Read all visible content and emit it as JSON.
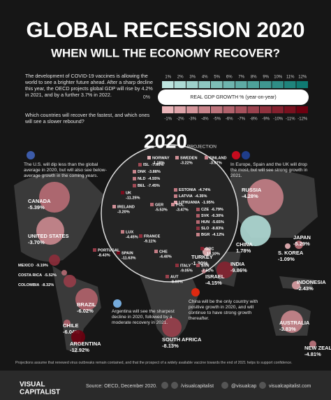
{
  "header": {
    "title": "GLOBAL RECESSION 2020",
    "subtitle": "WHEN WILL THE ECONOMY RECOVER?"
  },
  "intro": {
    "text": "The development of COVID-19 vaccines is allowing the world to see a brighter future ahead. After a sharp decline this year, the OECD projects global GDP will rise by 4.2% in 2021, and by a further 3.7% in 2022.",
    "question": "Which countries will recover the fastest, and which ones will see a slower rebound?"
  },
  "legend": {
    "title": "REAL GDP GROWTH % (year-on-year)",
    "zero": "0%",
    "positive": [
      {
        "value": 1,
        "label": "1%"
      },
      {
        "value": 2,
        "label": "2%"
      },
      {
        "value": 3,
        "label": "3%"
      },
      {
        "value": 4,
        "label": "4%"
      },
      {
        "value": 5,
        "label": "5%"
      },
      {
        "value": 6,
        "label": "6%"
      },
      {
        "value": 7,
        "label": "7%"
      },
      {
        "value": 8,
        "label": "8%"
      },
      {
        "value": 9,
        "label": "9%"
      },
      {
        "value": 10,
        "label": "10%"
      },
      {
        "value": 11,
        "label": "11%"
      },
      {
        "value": 12,
        "label": "12%"
      }
    ],
    "negative": [
      {
        "value": -1,
        "label": "-1%"
      },
      {
        "value": -2,
        "label": "-2%"
      },
      {
        "value": -3,
        "label": "-3%"
      },
      {
        "value": -4,
        "label": "-4%"
      },
      {
        "value": -5,
        "label": "-5%"
      },
      {
        "value": -6,
        "label": "-6%"
      },
      {
        "value": -7,
        "label": "-7%"
      },
      {
        "value": -8,
        "label": "-8%"
      },
      {
        "value": -9,
        "label": "-9%"
      },
      {
        "value": -10,
        "label": "-10%"
      },
      {
        "value": -11,
        "label": "-11%"
      },
      {
        "value": -12,
        "label": "-12%"
      }
    ]
  },
  "map": {
    "year": "2020",
    "projection": "PROJECTION",
    "notes": [
      {
        "text": "The U.S. will dip less than the global average in 2020, but will also see below-average growth in the coming years."
      },
      {
        "text": "In Europe, Spain and the UK will drop the most, but will see strong growth in 2021."
      },
      {
        "text": "China will be the only country with positive growth in 2020, and will continue to have strong growth thereafter."
      },
      {
        "text": "Argentina will see the sharpest decline in 2020, followed by a moderate recovery in 2021."
      }
    ],
    "countries": [
      {
        "name": "CANADA",
        "value": -5.39,
        "value_label": "-5.39%"
      },
      {
        "name": "UNITED STATES",
        "value": -3.7,
        "value_label": "-3.70%"
      },
      {
        "name": "MEXICO",
        "value": -9.19,
        "value_label": "-9.19%"
      },
      {
        "name": "COSTA RICA",
        "value": -5.52,
        "value_label": "-5.52%"
      },
      {
        "name": "COLOMBIA",
        "value": -8.32,
        "value_label": "-8.32%"
      },
      {
        "name": "BRAZIL",
        "value": -6.02,
        "value_label": "-6.02%"
      },
      {
        "name": "CHILE",
        "value": -6.04,
        "value_label": "-6.04%"
      },
      {
        "name": "ARGENTINA",
        "value": -12.92,
        "value_label": "-12.92%"
      },
      {
        "name": "SOUTH AFRICA",
        "value": -8.13,
        "value_label": "-8.13%"
      },
      {
        "name": "RUSSIA",
        "value": -4.28,
        "value_label": "-4.28%"
      },
      {
        "name": "CHINA",
        "value": 1.78,
        "value_label": "1.78%"
      },
      {
        "name": "JAPAN",
        "value": -5.29,
        "value_label": "-5.29%"
      },
      {
        "name": "S. KOREA",
        "value": -1.09,
        "value_label": "-1.09%"
      },
      {
        "name": "INDIA",
        "value": -9.86,
        "value_label": "-9.86%"
      },
      {
        "name": "INDONESIA",
        "value": -2.43,
        "value_label": "-2.43%"
      },
      {
        "name": "AUSTRALIA",
        "value": -3.83,
        "value_label": "-3.83%"
      },
      {
        "name": "NEW ZEALAND",
        "value": -4.81,
        "value_label": "-4.81%"
      },
      {
        "name": "TURKEY",
        "value": -1.3,
        "value_label": "-1.30%"
      },
      {
        "name": "ISRAEL",
        "value": -4.15,
        "value_label": "-4.15%"
      },
      {
        "name": "ISL",
        "value": -7.6,
        "value_label": "-7.60%"
      },
      {
        "name": "DNK",
        "value": -3.88,
        "value_label": "-3.88%"
      },
      {
        "name": "NLD",
        "value": -4.55,
        "value_label": "-4.55%"
      },
      {
        "name": "BEL",
        "value": -7.45,
        "value_label": "-7.45%"
      },
      {
        "name": "UK",
        "value": -11.25,
        "value_label": "-11.25%"
      },
      {
        "name": "IRELAND",
        "value": -3.2,
        "value_label": "-3.20%"
      },
      {
        "name": "LUX",
        "value": -4.45,
        "value_label": "-4.45%"
      },
      {
        "name": "NORWAY",
        "value": -1.18,
        "value_label": "-1.18%"
      },
      {
        "name": "SWEDEN",
        "value": -3.22,
        "value_label": "-3.22%"
      },
      {
        "name": "FINLAND",
        "value": -3.97,
        "value_label": "-3.97%"
      },
      {
        "name": "ESTONIA",
        "value": -4.74,
        "value_label": "-4.74%"
      },
      {
        "name": "LATVIA",
        "value": -4.35,
        "value_label": "-4.35%"
      },
      {
        "name": "LITHUANIA",
        "value": -1.95,
        "value_label": "-1.95%"
      },
      {
        "name": "CZE",
        "value": -6.79,
        "value_label": "-6.79%"
      },
      {
        "name": "SVK",
        "value": -6.3,
        "value_label": "-6.30%"
      },
      {
        "name": "HUN",
        "value": -5.65,
        "value_label": "-5.65%"
      },
      {
        "name": "SLO",
        "value": -8.83,
        "value_label": "-8.83%"
      },
      {
        "name": "BGR",
        "value": -4.12,
        "value_label": "-4.12%"
      },
      {
        "name": "GER",
        "value": -5.53,
        "value_label": "-5.53%"
      },
      {
        "name": "POL",
        "value": -3.47,
        "value_label": "-3.47%"
      },
      {
        "name": "FRANCE",
        "value": -9.11,
        "value_label": "-9.11%"
      },
      {
        "name": "SPAIN",
        "value": -11.63,
        "value_label": "-11.63%"
      },
      {
        "name": "PORTUGAL",
        "value": -8.43,
        "value_label": "-8.43%"
      },
      {
        "name": "CHE",
        "value": -4.4,
        "value_label": "-4.40%"
      },
      {
        "name": "ITALY",
        "value": -9.05,
        "value_label": "-9.05%"
      },
      {
        "name": "AUT",
        "value": -8.03,
        "value_label": "-8.03%"
      },
      {
        "name": "GRC",
        "value": -10.1,
        "value_label": "-10.10%"
      },
      {
        "name": "SVN",
        "value": -7.51,
        "value_label": "-7.51%"
      }
    ]
  },
  "footnote": "Projections assume that renewed virus outbreaks remain contained, and that the prospect of a widely available vaccine towards the end of 2021 helps to support confidence.",
  "footer": {
    "brand_top": "VISUAL",
    "brand_bottom": "CAPITALIST",
    "source": "Source: OECD, December 2020.",
    "facebook": "/visualcapitalist",
    "instagram": "@visualcap",
    "website": "visualcapitalist.com"
  }
}
